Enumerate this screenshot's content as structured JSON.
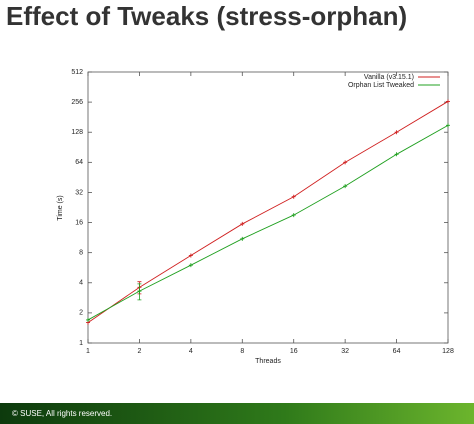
{
  "chart_data": {
    "type": "line",
    "title": "Effect of Tweaks (stress-orphan)",
    "x": [
      1,
      2,
      4,
      8,
      16,
      32,
      64,
      128
    ],
    "series": [
      {
        "name": "Vanilla (v3.15.1)",
        "color": "#d02020",
        "values": [
          1.6,
          3.6,
          7.5,
          15.5,
          29,
          64,
          128,
          260
        ],
        "errors": [
          0,
          0.5,
          0,
          0,
          0,
          0,
          0,
          0
        ]
      },
      {
        "name": "Orphan List Tweaked",
        "color": "#20a020",
        "values": [
          1.7,
          3.3,
          6,
          11,
          19,
          37,
          77,
          150
        ],
        "errors": [
          0,
          0.6,
          0,
          0,
          0,
          0,
          0,
          0
        ]
      }
    ],
    "xlabel": "Threads",
    "ylabel": "Time (s)",
    "xlim": [
      1,
      128
    ],
    "ylim": [
      1,
      512
    ],
    "xticks": [
      1,
      2,
      4,
      8,
      16,
      32,
      64,
      128
    ],
    "yticks": [
      1,
      2,
      4,
      8,
      16,
      32,
      64,
      128,
      256,
      512
    ],
    "xscale": "log2",
    "yscale": "log2",
    "legend": "top-right"
  },
  "footer": "© SUSE, All rights reserved."
}
